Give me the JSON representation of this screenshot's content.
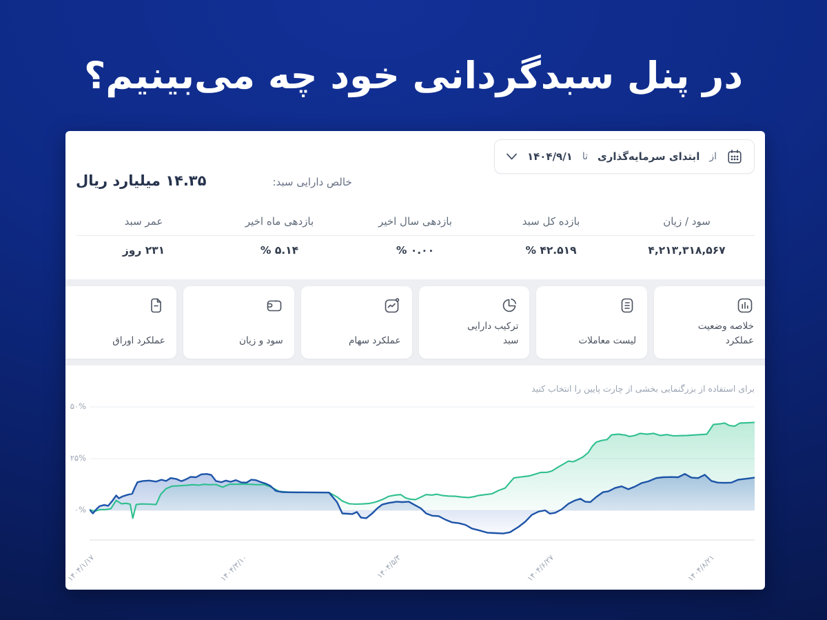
{
  "page": {
    "title": "در پنل سبدگردانی خود چه می‌بینیم؟"
  },
  "panel": {
    "date_filter": {
      "from_label": "از",
      "from_value": "ابتدای سرمایه‌گذاری",
      "to_label": "تا",
      "to_value": "۱۴۰۴/۹/۱"
    },
    "net_assets": {
      "label": "خالص دارایی سبد:",
      "value": "۱۴.۳۵ میلیارد ریال"
    },
    "stats": [
      {
        "label": "سود / زیان",
        "value": "۴,۲۱۳,۳۱۸,۵۶۷"
      },
      {
        "label": "بازده کل سبد",
        "value": "% ۴۲.۵۱۹"
      },
      {
        "label": "بازدهی سال اخیر",
        "value": "% ۰.۰۰"
      },
      {
        "label": "بازدهی ماه اخیر",
        "value": "% ۵.۱۴"
      },
      {
        "label": "عمر سبد",
        "value": "۲۳۱ روز"
      }
    ],
    "tabs": [
      {
        "label": "خلاصه وضعیت عملکرد",
        "icon": "bar-chart-icon"
      },
      {
        "label": "لیست معاملات",
        "icon": "list-icon"
      },
      {
        "label": "ترکیب دارایی سبد",
        "icon": "pie-chart-icon"
      },
      {
        "label": "عملکرد سهام",
        "icon": "trend-icon"
      },
      {
        "label": "سود و زیان",
        "icon": "wallet-icon"
      },
      {
        "label": "عملکرد اوراق",
        "icon": "document-icon"
      }
    ],
    "chart_hint": "برای استفاده از بزرگنمایی بخشی از چارت پایین را انتخاب کنید"
  },
  "chart_data": {
    "type": "area",
    "title": "",
    "xlabel": "",
    "ylabel": "",
    "grid": true,
    "legend": "none",
    "ylim": [
      -15,
      55
    ],
    "ylabel_ticks": [
      "۵۰%",
      "۲۵%",
      "۰%"
    ],
    "y_ticks_percent": [
      50,
      25,
      0
    ],
    "x_tick_labels": [
      "۱۴۰۴/۱/۱۷",
      "۱۴۰۴/۳/۱۰",
      "۱۴۰۴/۵/۳",
      "۱۴۰۴/۶/۲۷",
      "۱۴۰۴/۸/۲۱"
    ],
    "x_tick_pos": [
      0,
      0.23,
      0.461,
      0.691,
      0.933
    ],
    "series": [
      {
        "name": "green-series",
        "color": "#2fbf8f",
        "fill_id": "greenGrad",
        "points": [
          [
            0,
            0.2
          ],
          [
            0.008,
            -0.4
          ],
          [
            0.015,
            0.3
          ],
          [
            0.025,
            0.4
          ],
          [
            0.032,
            0.8
          ],
          [
            0.04,
            4.8
          ],
          [
            0.048,
            3.2
          ],
          [
            0.055,
            3.4
          ],
          [
            0.061,
            3
          ],
          [
            0.065,
            -3.8
          ],
          [
            0.07,
            2.8
          ],
          [
            0.078,
            3.1
          ],
          [
            0.09,
            3
          ],
          [
            0.1,
            2.8
          ],
          [
            0.107,
            7.8
          ],
          [
            0.115,
            10.5
          ],
          [
            0.124,
            11.7
          ],
          [
            0.135,
            11.9
          ],
          [
            0.145,
            12.1
          ],
          [
            0.155,
            12.4
          ],
          [
            0.165,
            12.2
          ],
          [
            0.172,
            12.6
          ],
          [
            0.18,
            12.4
          ],
          [
            0.19,
            12.5
          ],
          [
            0.2,
            11.2
          ],
          [
            0.21,
            12.6
          ],
          [
            0.225,
            12.7
          ],
          [
            0.24,
            12.6
          ],
          [
            0.255,
            12.4
          ],
          [
            0.262,
            12.5
          ],
          [
            0.27,
            11.6
          ],
          [
            0.278,
            10.4
          ],
          [
            0.285,
            9.2
          ],
          [
            0.3,
            8.8
          ],
          [
            0.32,
            8.7
          ],
          [
            0.34,
            8.6
          ],
          [
            0.36,
            8.6
          ],
          [
            0.372,
            6.5
          ],
          [
            0.38,
            4.5
          ],
          [
            0.39,
            3.2
          ],
          [
            0.4,
            3
          ],
          [
            0.41,
            3.1
          ],
          [
            0.42,
            3.3
          ],
          [
            0.43,
            4
          ],
          [
            0.44,
            5.2
          ],
          [
            0.45,
            6.8
          ],
          [
            0.46,
            7.4
          ],
          [
            0.468,
            7.6
          ],
          [
            0.475,
            6
          ],
          [
            0.482,
            5.4
          ],
          [
            0.49,
            5.2
          ],
          [
            0.498,
            6.4
          ],
          [
            0.506,
            7.6
          ],
          [
            0.515,
            7.4
          ],
          [
            0.522,
            7.8
          ],
          [
            0.53,
            7.2
          ],
          [
            0.54,
            6.9
          ],
          [
            0.55,
            6.8
          ],
          [
            0.56,
            6.4
          ],
          [
            0.57,
            6.2
          ],
          [
            0.578,
            6.6
          ],
          [
            0.585,
            7.2
          ],
          [
            0.595,
            7.6
          ],
          [
            0.605,
            8
          ],
          [
            0.615,
            9.6
          ],
          [
            0.625,
            10.8
          ],
          [
            0.632,
            13.5
          ],
          [
            0.638,
            15.7
          ],
          [
            0.645,
            16
          ],
          [
            0.655,
            16.4
          ],
          [
            0.662,
            16.7
          ],
          [
            0.67,
            17.5
          ],
          [
            0.678,
            18.3
          ],
          [
            0.688,
            18.4
          ],
          [
            0.695,
            19
          ],
          [
            0.705,
            21
          ],
          [
            0.712,
            22.3
          ],
          [
            0.72,
            23.8
          ],
          [
            0.727,
            23.5
          ],
          [
            0.733,
            24.3
          ],
          [
            0.742,
            25.8
          ],
          [
            0.75,
            28
          ],
          [
            0.756,
            31
          ],
          [
            0.762,
            33
          ],
          [
            0.77,
            33.8
          ],
          [
            0.778,
            34.2
          ],
          [
            0.785,
            36.5
          ],
          [
            0.795,
            36.8
          ],
          [
            0.805,
            36.4
          ],
          [
            0.812,
            35.7
          ],
          [
            0.82,
            36.2
          ],
          [
            0.828,
            37.2
          ],
          [
            0.838,
            36.8
          ],
          [
            0.848,
            37.2
          ],
          [
            0.858,
            36.2
          ],
          [
            0.868,
            36.6
          ],
          [
            0.878,
            36
          ],
          [
            0.888,
            36.1
          ],
          [
            0.898,
            36.2
          ],
          [
            0.908,
            36.4
          ],
          [
            0.918,
            36.6
          ],
          [
            0.928,
            36.8
          ],
          [
            0.938,
            41.5
          ],
          [
            0.948,
            41.8
          ],
          [
            0.955,
            42.2
          ],
          [
            0.962,
            41
          ],
          [
            0.97,
            40.7
          ],
          [
            0.978,
            42.2
          ],
          [
            0.988,
            42.3
          ],
          [
            1,
            42.5
          ]
        ]
      },
      {
        "name": "blue-series",
        "color": "#1d54a8",
        "fill_id": "blueGrad",
        "points": [
          [
            0,
            0.3
          ],
          [
            0.005,
            -1.5
          ],
          [
            0.01,
            0.5
          ],
          [
            0.015,
            2
          ],
          [
            0.022,
            2.6
          ],
          [
            0.028,
            2.2
          ],
          [
            0.034,
            4.5
          ],
          [
            0.04,
            7.2
          ],
          [
            0.044,
            5.8
          ],
          [
            0.05,
            6.8
          ],
          [
            0.058,
            7.6
          ],
          [
            0.064,
            8
          ],
          [
            0.068,
            11
          ],
          [
            0.072,
            13.6
          ],
          [
            0.08,
            14.2
          ],
          [
            0.09,
            14.4
          ],
          [
            0.1,
            13.9
          ],
          [
            0.108,
            14.8
          ],
          [
            0.115,
            14.2
          ],
          [
            0.122,
            15.6
          ],
          [
            0.13,
            15.2
          ],
          [
            0.138,
            14.1
          ],
          [
            0.145,
            15
          ],
          [
            0.152,
            16.2
          ],
          [
            0.16,
            16
          ],
          [
            0.168,
            17.4
          ],
          [
            0.176,
            17.6
          ],
          [
            0.183,
            17.1
          ],
          [
            0.19,
            14.2
          ],
          [
            0.198,
            13.6
          ],
          [
            0.205,
            14.4
          ],
          [
            0.212,
            13.8
          ],
          [
            0.22,
            14.6
          ],
          [
            0.228,
            13.5
          ],
          [
            0.236,
            13.4
          ],
          [
            0.243,
            14.8
          ],
          [
            0.25,
            14.6
          ],
          [
            0.258,
            13.6
          ],
          [
            0.265,
            12.9
          ],
          [
            0.272,
            11.8
          ],
          [
            0.28,
            9.4
          ],
          [
            0.29,
            8.8
          ],
          [
            0.31,
            8.7
          ],
          [
            0.33,
            8.7
          ],
          [
            0.36,
            8.6
          ],
          [
            0.372,
            4
          ],
          [
            0.38,
            -1.5
          ],
          [
            0.395,
            -1.8
          ],
          [
            0.402,
            -0.8
          ],
          [
            0.408,
            -3.5
          ],
          [
            0.416,
            -3.8
          ],
          [
            0.425,
            -1.5
          ],
          [
            0.432,
            0.8
          ],
          [
            0.44,
            2.8
          ],
          [
            0.45,
            3.6
          ],
          [
            0.462,
            4.2
          ],
          [
            0.47,
            4
          ],
          [
            0.48,
            4.2
          ],
          [
            0.49,
            2.4
          ],
          [
            0.498,
            1
          ],
          [
            0.506,
            -1.5
          ],
          [
            0.515,
            -2.6
          ],
          [
            0.525,
            -2.8
          ],
          [
            0.535,
            -4.5
          ],
          [
            0.545,
            -5.8
          ],
          [
            0.555,
            -6.2
          ],
          [
            0.565,
            -7
          ],
          [
            0.575,
            -8.8
          ],
          [
            0.585,
            -9.6
          ],
          [
            0.598,
            -10.8
          ],
          [
            0.61,
            -11
          ],
          [
            0.622,
            -11.2
          ],
          [
            0.632,
            -10.6
          ],
          [
            0.645,
            -8
          ],
          [
            0.655,
            -5.5
          ],
          [
            0.665,
            -2.2
          ],
          [
            0.675,
            -0.6
          ],
          [
            0.685,
            0
          ],
          [
            0.692,
            -1.6
          ],
          [
            0.7,
            -1.2
          ],
          [
            0.71,
            0.5
          ],
          [
            0.72,
            3.2
          ],
          [
            0.73,
            4.8
          ],
          [
            0.738,
            5.6
          ],
          [
            0.745,
            4.2
          ],
          [
            0.753,
            4
          ],
          [
            0.762,
            6.5
          ],
          [
            0.772,
            8.8
          ],
          [
            0.78,
            9.2
          ],
          [
            0.79,
            10.8
          ],
          [
            0.8,
            11.6
          ],
          [
            0.81,
            10.2
          ],
          [
            0.82,
            11.5
          ],
          [
            0.83,
            13.2
          ],
          [
            0.84,
            14
          ],
          [
            0.852,
            15.6
          ],
          [
            0.862,
            16
          ],
          [
            0.875,
            16.1
          ],
          [
            0.885,
            16
          ],
          [
            0.895,
            17.6
          ],
          [
            0.905,
            15.8
          ],
          [
            0.915,
            15.6
          ],
          [
            0.925,
            17.2
          ],
          [
            0.935,
            14.2
          ],
          [
            0.945,
            13.4
          ],
          [
            0.955,
            13.3
          ],
          [
            0.965,
            13.4
          ],
          [
            0.975,
            14.8
          ],
          [
            0.985,
            15.2
          ],
          [
            1,
            15.8
          ]
        ]
      }
    ]
  }
}
